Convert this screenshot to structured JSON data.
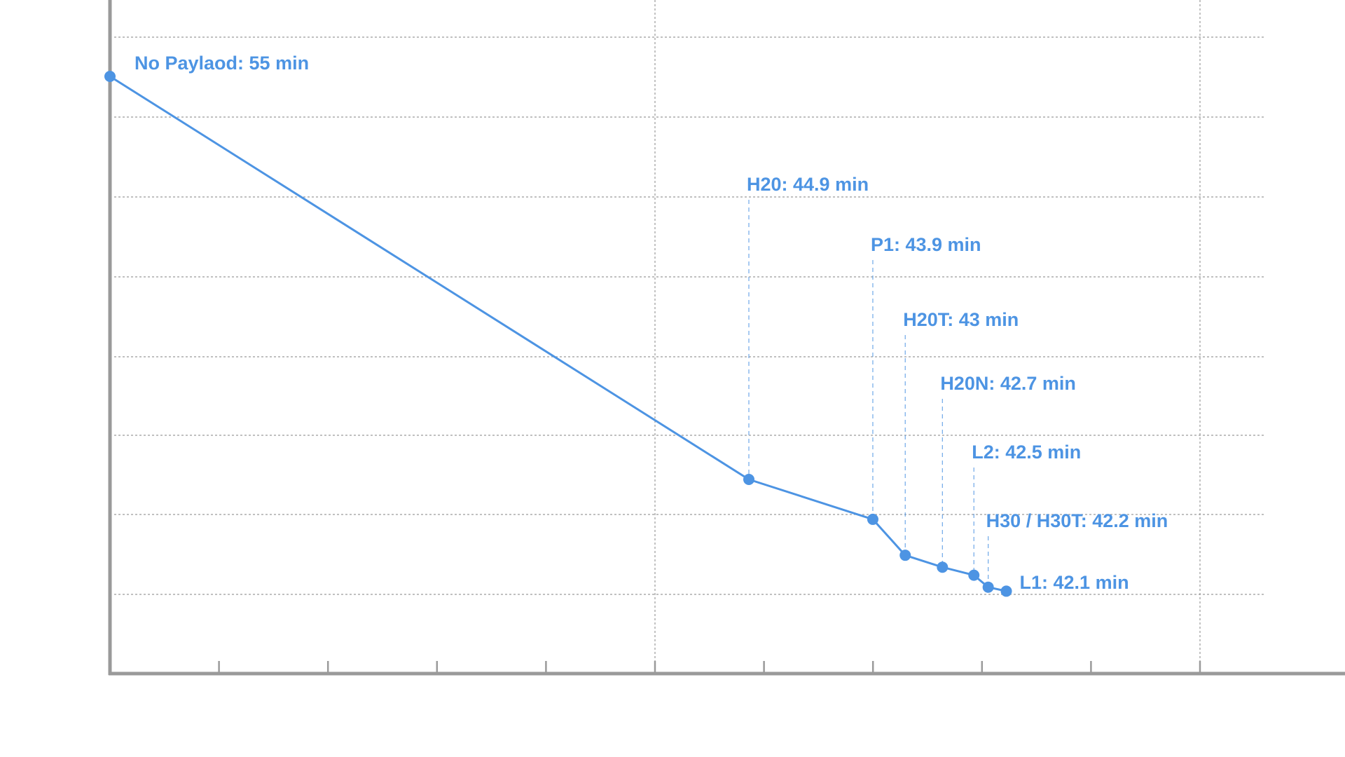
{
  "colors": {
    "accent": "#4d94e3",
    "axis": "#9a9a9a",
    "grid": "#9a9a9a",
    "background": "#ffffff"
  },
  "chart_data": {
    "type": "line",
    "title": "",
    "xlabel": "",
    "ylabel": "",
    "grid": true,
    "legend": "none",
    "xlim": [
      0,
      1150
    ],
    "ylim": [
      40,
      58
    ],
    "points": [
      {
        "x": 0,
        "y": 55,
        "label": "No Paylaod: 55 min"
      },
      {
        "x": 670,
        "y": 44.9,
        "label": "H20: 44.9 min"
      },
      {
        "x": 800,
        "y": 43.9,
        "label": "P1: 43.9 min"
      },
      {
        "x": 834,
        "y": 43,
        "label": "H20T: 43 min"
      },
      {
        "x": 873,
        "y": 42.7,
        "label": "H20N: 42.7 min"
      },
      {
        "x": 906,
        "y": 42.5,
        "label": "L2: 42.5 min"
      },
      {
        "x": 921,
        "y": 42.2,
        "label": "H30 / H30T: 42.2 min"
      },
      {
        "x": 940,
        "y": 42.1,
        "label": "L1: 42.1 min"
      }
    ]
  }
}
